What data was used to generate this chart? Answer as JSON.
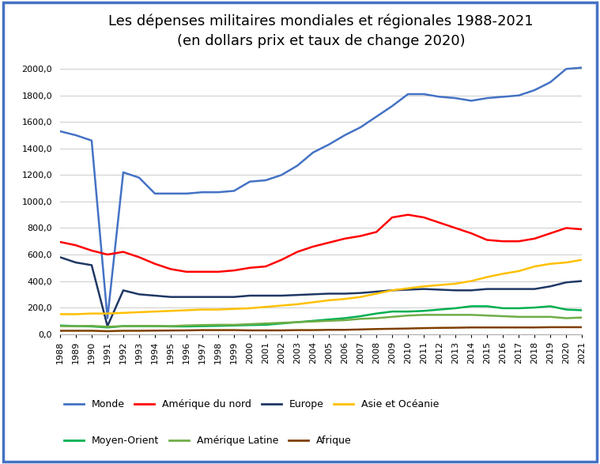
{
  "title": "Les dépenses militaires mondiales et régionales 1988-2021\n(en dollars prix et taux de change 2020)",
  "years": [
    1988,
    1989,
    1990,
    1991,
    1992,
    1993,
    1994,
    1995,
    1996,
    1997,
    1998,
    1999,
    2000,
    2001,
    2002,
    2003,
    2004,
    2005,
    2006,
    2007,
    2008,
    2009,
    2010,
    2011,
    2012,
    2013,
    2014,
    2015,
    2016,
    2017,
    2018,
    2019,
    2020,
    2021
  ],
  "series": {
    "Monde": {
      "color": "#4472C4",
      "linewidth": 1.8,
      "values": [
        1530,
        1500,
        1460,
        120,
        1220,
        1180,
        1060,
        1060,
        1060,
        1070,
        1070,
        1080,
        1150,
        1160,
        1200,
        1270,
        1370,
        1430,
        1500,
        1560,
        1640,
        1720,
        1810,
        1810,
        1790,
        1780,
        1760,
        1780,
        1790,
        1800,
        1840,
        1900,
        2000,
        2010
      ]
    },
    "Amérique du nord": {
      "color": "#FF0000",
      "linewidth": 1.8,
      "values": [
        695,
        670,
        630,
        600,
        620,
        580,
        530,
        490,
        470,
        470,
        470,
        480,
        500,
        510,
        560,
        620,
        660,
        690,
        720,
        740,
        770,
        880,
        900,
        880,
        840,
        800,
        760,
        710,
        700,
        700,
        720,
        760,
        800,
        790
      ]
    },
    "Europe": {
      "color": "#1F3864",
      "linewidth": 1.8,
      "values": [
        580,
        540,
        520,
        60,
        330,
        300,
        290,
        280,
        280,
        280,
        280,
        280,
        290,
        290,
        290,
        295,
        300,
        305,
        305,
        310,
        320,
        330,
        335,
        340,
        335,
        330,
        330,
        340,
        340,
        340,
        340,
        360,
        390,
        400
      ]
    },
    "Asie et Océanie": {
      "color": "#FFC000",
      "linewidth": 1.8,
      "values": [
        150,
        150,
        155,
        155,
        160,
        165,
        170,
        175,
        180,
        185,
        185,
        190,
        195,
        205,
        215,
        225,
        240,
        255,
        265,
        280,
        305,
        330,
        345,
        360,
        370,
        380,
        400,
        430,
        455,
        475,
        510,
        530,
        540,
        560
      ]
    },
    "Moyen-Orient": {
      "color": "#00B050",
      "linewidth": 1.8,
      "values": [
        65,
        60,
        58,
        50,
        60,
        60,
        60,
        58,
        58,
        60,
        62,
        65,
        68,
        70,
        80,
        90,
        100,
        110,
        120,
        135,
        155,
        170,
        170,
        175,
        185,
        195,
        210,
        210,
        195,
        195,
        200,
        210,
        185,
        180
      ]
    },
    "Amérique Latine": {
      "color": "#70AD47",
      "linewidth": 1.8,
      "values": [
        60,
        60,
        62,
        55,
        60,
        62,
        62,
        60,
        65,
        68,
        70,
        70,
        75,
        80,
        85,
        90,
        95,
        100,
        105,
        115,
        120,
        130,
        140,
        145,
        145,
        145,
        145,
        140,
        135,
        130,
        130,
        130,
        120,
        125
      ]
    },
    "Afrique": {
      "color": "#7F3F00",
      "linewidth": 1.8,
      "values": [
        25,
        25,
        25,
        22,
        25,
        25,
        26,
        27,
        28,
        30,
        30,
        30,
        28,
        28,
        28,
        30,
        30,
        32,
        32,
        35,
        38,
        40,
        42,
        45,
        47,
        48,
        50,
        50,
        50,
        50,
        50,
        52,
        52,
        52
      ]
    }
  },
  "ylim": [
    0,
    2100
  ],
  "yticks": [
    0,
    200,
    400,
    600,
    800,
    1000,
    1200,
    1400,
    1600,
    1800,
    2000
  ],
  "background_color": "#FFFFFF",
  "border_color": "#4472C4",
  "grid_color": "#CCCCCC",
  "title_fontsize": 13,
  "legend_fontsize": 9,
  "tick_fontsize": 8
}
